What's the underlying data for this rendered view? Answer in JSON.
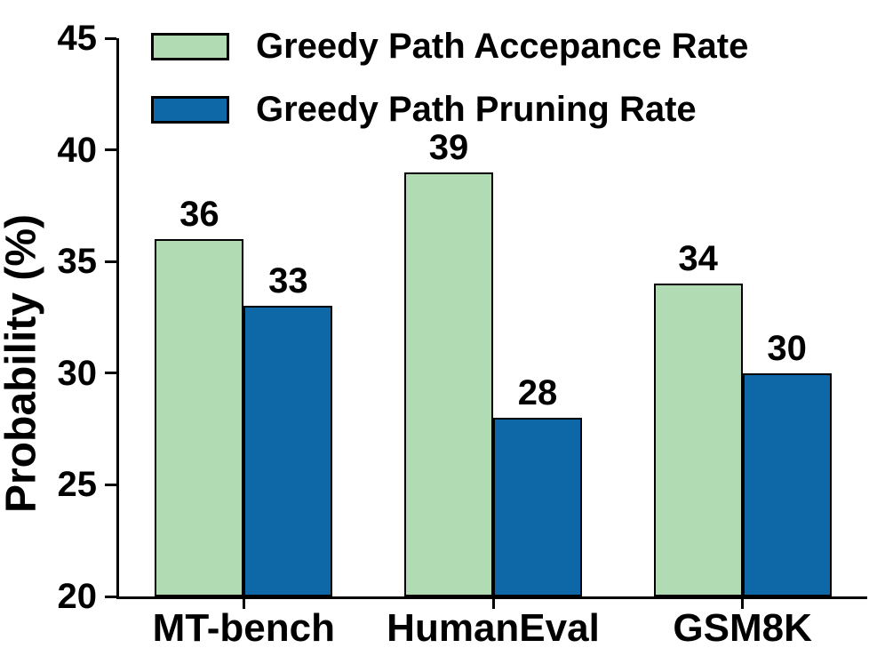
{
  "chart_data": {
    "type": "bar",
    "categories": [
      "MT-bench",
      "HumanEval",
      "GSM8K"
    ],
    "series": [
      {
        "name": "Greedy Path Accepance Rate",
        "color": "#b1dbb3",
        "values": [
          36,
          39,
          34
        ]
      },
      {
        "name": "Greedy Path Pruning Rate",
        "color": "#0e68a8",
        "values": [
          33,
          28,
          30
        ]
      }
    ],
    "title": "",
    "xlabel": "",
    "ylabel": "Probability (%)",
    "ylim": [
      20,
      45
    ],
    "yticks": [
      20,
      25,
      30,
      35,
      40,
      45
    ],
    "bar_value_labels": {
      "Greedy Path Accepance Rate": [
        "36",
        "39",
        "34"
      ],
      "Greedy Path Pruning Rate": [
        "33",
        "28",
        "30"
      ]
    },
    "legend_position": "upper-left",
    "grid": false,
    "bar_edge_color": "#000000",
    "axis_color": "#000000",
    "text_color": "#000000",
    "background_color": "#ffffff"
  }
}
